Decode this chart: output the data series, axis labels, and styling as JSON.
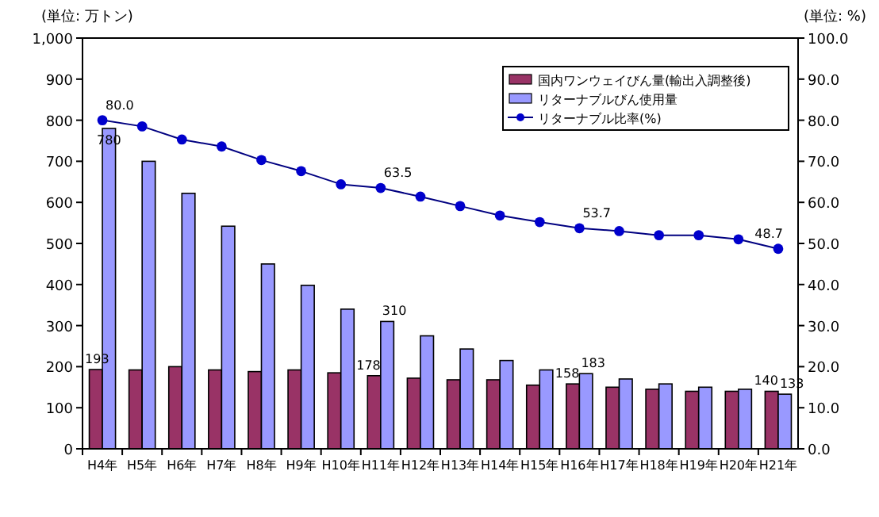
{
  "chart_data": {
    "type": "bar",
    "ylabel": "(単位: 万トン)",
    "y2label": "(単位: %)",
    "categories": [
      "H4年",
      "H5年",
      "H6年",
      "H7年",
      "H8年",
      "H9年",
      "H10年",
      "H11年",
      "H12年",
      "H13年",
      "H14年",
      "H15年",
      "H16年",
      "H17年",
      "H18年",
      "H19年",
      "H20年",
      "H21年"
    ],
    "series": [
      {
        "name": "国内ワンウェイびん量(輸出入調整後)",
        "color": "#993366",
        "values": [
          193,
          192,
          200,
          192,
          188,
          192,
          185,
          178,
          172,
          168,
          168,
          155,
          158,
          150,
          145,
          140,
          140,
          140
        ],
        "value_labels": [
          "193",
          null,
          null,
          null,
          null,
          null,
          null,
          "178",
          null,
          null,
          null,
          null,
          "158",
          null,
          null,
          null,
          null,
          "140"
        ]
      },
      {
        "name": "リターナブルびん使用量",
        "color": "#9999ff",
        "values": [
          780,
          700,
          622,
          542,
          450,
          398,
          340,
          310,
          275,
          243,
          215,
          192,
          183,
          170,
          158,
          150,
          145,
          133
        ],
        "value_labels": [
          "780",
          null,
          null,
          null,
          null,
          null,
          null,
          "310",
          null,
          null,
          null,
          null,
          "183",
          null,
          null,
          null,
          null,
          "133"
        ]
      },
      {
        "name": "リターナブル比率(%)",
        "type": "line",
        "axis": "y2",
        "color": "#0000cc",
        "marker": "circle",
        "values": [
          80.0,
          78.5,
          75.3,
          73.6,
          70.3,
          67.6,
          64.4,
          63.5,
          61.4,
          59.1,
          56.8,
          55.2,
          53.7,
          53.0,
          52.0,
          52.0,
          51.0,
          48.7
        ],
        "value_labels": [
          "80.0",
          null,
          null,
          null,
          null,
          null,
          null,
          "63.5",
          null,
          null,
          null,
          null,
          "53.7",
          null,
          null,
          null,
          null,
          "48.7"
        ]
      }
    ],
    "ylim": [
      0,
      1000
    ],
    "yticks": [
      0,
      100,
      200,
      300,
      400,
      500,
      600,
      700,
      800,
      900,
      {
        "value": 1000,
        "label": "1,000"
      }
    ],
    "y2lim": [
      0,
      100
    ],
    "y2ticks": [
      {
        "value": 0,
        "label": "0.0"
      },
      {
        "value": 10,
        "label": "10.0"
      },
      {
        "value": 20,
        "label": "20.0"
      },
      {
        "value": 30,
        "label": "30.0"
      },
      {
        "value": 40,
        "label": "40.0"
      },
      {
        "value": 50,
        "label": "50.0"
      },
      {
        "value": 60,
        "label": "60.0"
      },
      {
        "value": 70,
        "label": "70.0"
      },
      {
        "value": 80,
        "label": "80.0"
      },
      {
        "value": 90,
        "label": "90.0"
      },
      {
        "value": 100,
        "label": "100.0"
      }
    ],
    "legend": "top right",
    "grid": false
  }
}
